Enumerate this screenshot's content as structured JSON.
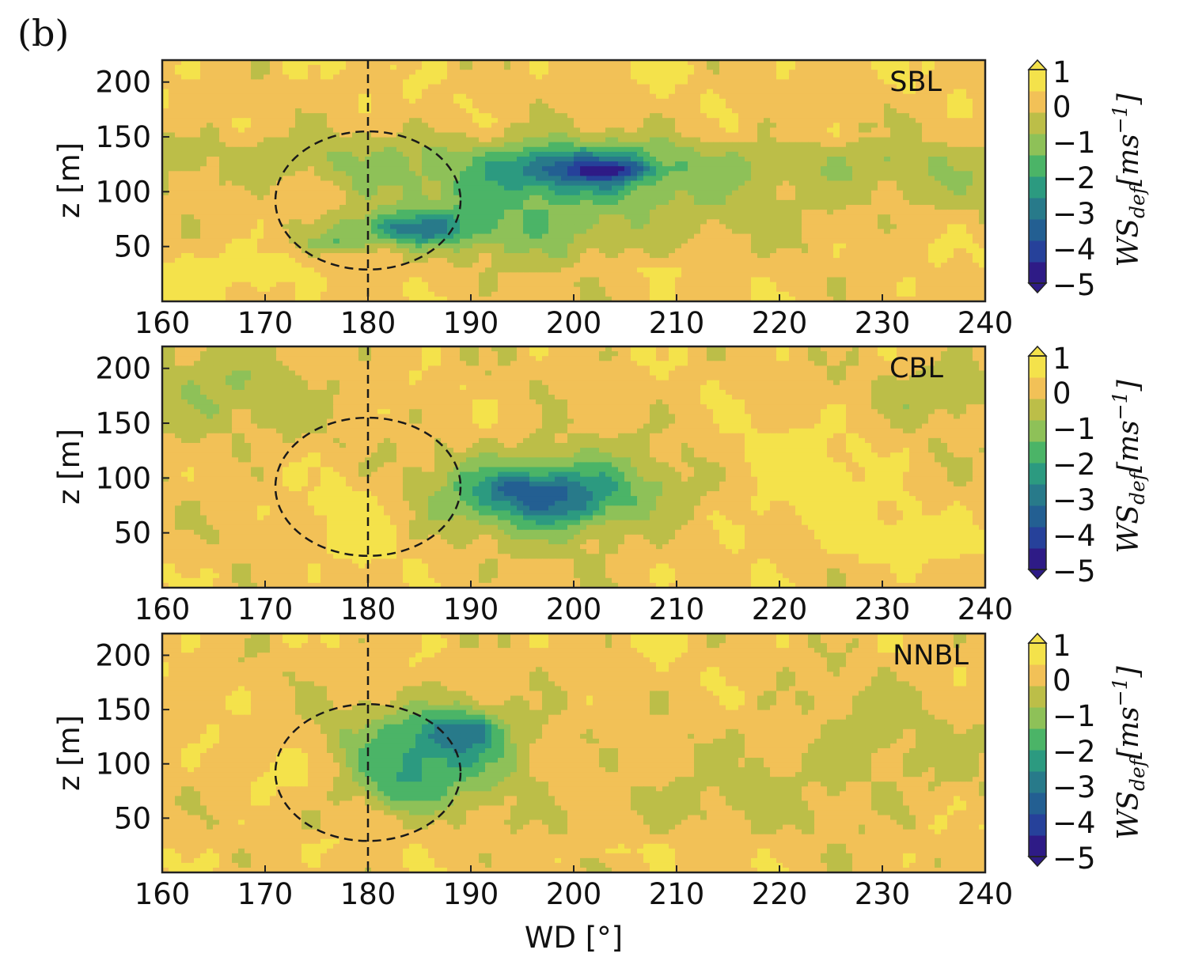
{
  "figure": {
    "panel_letter": "(b)"
  },
  "colors": {
    "levels": [
      "#2e1b86",
      "#26419a",
      "#235f92",
      "#287a8a",
      "#2c9a80",
      "#4bb467",
      "#8ec158",
      "#bcbe48",
      "#f2c157",
      "#f4e24b"
    ],
    "frame": "#222222",
    "annotation": "#1a1a1a"
  },
  "chart_data": [
    {
      "type": "heatmap",
      "title": "SBL",
      "xlabel": "",
      "ylabel": "z [m]",
      "xlim": [
        160,
        240
      ],
      "ylim": [
        0,
        220
      ],
      "xticks": [
        "160",
        "170",
        "180",
        "190",
        "200",
        "210",
        "220",
        "230",
        "240"
      ],
      "yticks": [
        "50",
        "100",
        "150",
        "200"
      ],
      "reference_line": {
        "x": 180
      },
      "rotor_circle": {
        "center": [
          180,
          92
        ],
        "radius_x": 9,
        "radius_y": 63
      },
      "colorbar": {
        "label": "WS_def[ms^-1]",
        "ticks": [
          "1",
          "0",
          "−1",
          "−2",
          "−3",
          "−4",
          "−5"
        ],
        "range": [
          -5,
          1
        ]
      },
      "background": 0.2,
      "features": [
        {
          "x": 180,
          "y": 130,
          "sx": 60,
          "sy": 26,
          "amp": -0.75
        },
        {
          "x": 228,
          "y": 110,
          "sx": 22,
          "sy": 40,
          "amp": -0.6
        },
        {
          "x": 168,
          "y": 28,
          "sx": 7,
          "sy": 20,
          "amp": 0.8
        },
        {
          "x": 206,
          "y": 28,
          "sx": 6,
          "sy": 10,
          "amp": 0.4
        },
        {
          "x": 225,
          "y": 150,
          "sx": 14,
          "sy": 8,
          "amp": 0.25
        },
        {
          "x": 196,
          "y": 84,
          "sx": 16,
          "sy": 48,
          "amp": -1.45
        },
        {
          "x": 184,
          "y": 66,
          "sx": 6.5,
          "sy": 15,
          "amp": -2.3
        },
        {
          "x": 177,
          "y": 52,
          "sx": 3,
          "sy": 8,
          "amp": -1.3
        },
        {
          "x": 200,
          "y": 120,
          "sx": 7,
          "sy": 20,
          "amp": -2.6
        },
        {
          "x": 204,
          "y": 120,
          "sx": 3.5,
          "sy": 8,
          "amp": -1.5
        }
      ]
    },
    {
      "type": "heatmap",
      "title": "CBL",
      "xlabel": "",
      "ylabel": "z [m]",
      "xlim": [
        160,
        240
      ],
      "ylim": [
        0,
        220
      ],
      "xticks": [
        "160",
        "170",
        "180",
        "190",
        "200",
        "210",
        "220",
        "230",
        "240"
      ],
      "yticks": [
        "50",
        "100",
        "150",
        "200"
      ],
      "reference_line": {
        "x": 180
      },
      "rotor_circle": {
        "center": [
          180,
          92
        ],
        "radius_x": 9,
        "radius_y": 63
      },
      "colorbar": {
        "label": "WS_def[ms^-1]",
        "ticks": [
          "1",
          "0",
          "−1",
          "−2",
          "−3",
          "−4",
          "−5"
        ],
        "range": [
          -5,
          1
        ]
      },
      "background": 0.1,
      "features": [
        {
          "x": 165,
          "y": 175,
          "sx": 9,
          "sy": 45,
          "amp": -0.85
        },
        {
          "x": 236,
          "y": 180,
          "sx": 6,
          "sy": 30,
          "amp": -0.85
        },
        {
          "x": 179,
          "y": 60,
          "sx": 4,
          "sy": 45,
          "amp": 0.75
        },
        {
          "x": 222,
          "y": 90,
          "sx": 9,
          "sy": 60,
          "amp": 0.65
        },
        {
          "x": 232,
          "y": 40,
          "sx": 6,
          "sy": 25,
          "amp": 0.6
        },
        {
          "x": 198,
          "y": 86,
          "sx": 11,
          "sy": 38,
          "amp": -2.4
        },
        {
          "x": 197,
          "y": 85,
          "sx": 6,
          "sy": 20,
          "amp": -1.3
        },
        {
          "x": 194,
          "y": 92,
          "sx": 2.5,
          "sy": 10,
          "amp": -0.6
        },
        {
          "x": 200,
          "y": 68,
          "sx": 2.5,
          "sy": 8,
          "amp": -0.4
        }
      ]
    },
    {
      "type": "heatmap",
      "title": "NNBL",
      "xlabel": "WD [°]",
      "ylabel": "z [m]",
      "xlim": [
        160,
        240
      ],
      "ylim": [
        0,
        220
      ],
      "xticks": [
        "160",
        "170",
        "180",
        "190",
        "200",
        "210",
        "220",
        "230",
        "240"
      ],
      "yticks": [
        "50",
        "100",
        "150",
        "200"
      ],
      "reference_line": {
        "x": 180
      },
      "rotor_circle": {
        "center": [
          180,
          92
        ],
        "radius_x": 9,
        "radius_y": 63
      },
      "colorbar": {
        "label": "WS_def[ms^-1]",
        "ticks": [
          "1",
          "0",
          "−1",
          "−2",
          "−3",
          "−4",
          "−5"
        ],
        "range": [
          -5,
          1
        ]
      },
      "background": 0.15,
      "features": [
        {
          "x": 172,
          "y": 92,
          "sx": 4,
          "sy": 18,
          "amp": 0.6
        },
        {
          "x": 210,
          "y": 60,
          "sx": 8,
          "sy": 30,
          "amp": -0.6
        },
        {
          "x": 228,
          "y": 110,
          "sx": 12,
          "sy": 60,
          "amp": -0.6
        },
        {
          "x": 205,
          "y": 20,
          "sx": 4,
          "sy": 10,
          "amp": 0.5
        },
        {
          "x": 176,
          "y": 25,
          "sx": 4,
          "sy": 8,
          "amp": 0.4
        },
        {
          "x": 186,
          "y": 108,
          "sx": 9,
          "sy": 45,
          "amp": -2.0
        },
        {
          "x": 189,
          "y": 130,
          "sx": 4.5,
          "sy": 22,
          "amp": -1.6
        },
        {
          "x": 183,
          "y": 75,
          "sx": 4,
          "sy": 22,
          "amp": -0.9
        },
        {
          "x": 190,
          "y": 134,
          "sx": 1.8,
          "sy": 8,
          "amp": -0.8
        }
      ]
    }
  ]
}
